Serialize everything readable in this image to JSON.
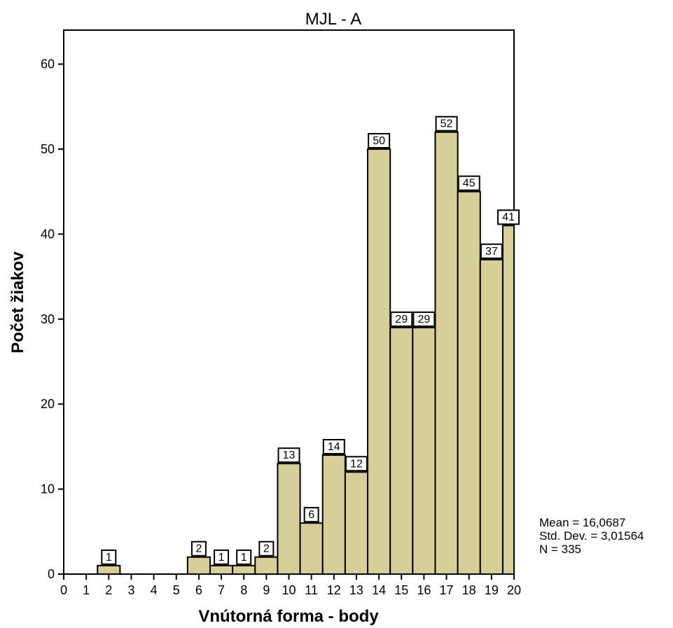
{
  "chart_data": {
    "type": "bar",
    "title": "MJL - A",
    "xlabel": "Vnútorná forma - body",
    "ylabel": "Počet žiakov",
    "x_ticks": [
      "0",
      "1",
      "2",
      "3",
      "4",
      "5",
      "6",
      "7",
      "8",
      "9",
      "10",
      "11",
      "12",
      "13",
      "14",
      "15",
      "16",
      "17",
      "18",
      "19",
      "20"
    ],
    "y_ticks": [
      "0",
      "10",
      "20",
      "30",
      "40",
      "50",
      "60"
    ],
    "xlim": [
      0,
      20
    ],
    "ylim": [
      0,
      64
    ],
    "bins": [
      {
        "from": 1.5,
        "to": 2.5,
        "value": 1,
        "label": "1"
      },
      {
        "from": 5.5,
        "to": 6.5,
        "value": 2,
        "label": "2"
      },
      {
        "from": 6.5,
        "to": 7.5,
        "value": 1,
        "label": "1"
      },
      {
        "from": 7.5,
        "to": 8.5,
        "value": 1,
        "label": "1"
      },
      {
        "from": 8.5,
        "to": 9.5,
        "value": 2,
        "label": "2"
      },
      {
        "from": 9.5,
        "to": 10.5,
        "value": 13,
        "label": "13"
      },
      {
        "from": 10.5,
        "to": 11.5,
        "value": 6,
        "label": "6"
      },
      {
        "from": 11.5,
        "to": 12.5,
        "value": 14,
        "label": "14"
      },
      {
        "from": 12.5,
        "to": 13.5,
        "value": 12,
        "label": "12"
      },
      {
        "from": 13.5,
        "to": 14.5,
        "value": 50,
        "label": "50"
      },
      {
        "from": 14.5,
        "to": 15.5,
        "value": 29,
        "label": "29"
      },
      {
        "from": 15.5,
        "to": 16.5,
        "value": 29,
        "label": "29"
      },
      {
        "from": 16.5,
        "to": 17.5,
        "value": 52,
        "label": "52"
      },
      {
        "from": 17.5,
        "to": 18.5,
        "value": 45,
        "label": "45"
      },
      {
        "from": 18.5,
        "to": 19.5,
        "value": 37,
        "label": "37"
      },
      {
        "from": 19.5,
        "to": 20,
        "value": 41,
        "label": "41"
      }
    ],
    "bar_color": "#d6cf98",
    "stats": {
      "mean": "Mean = 16,0687",
      "std": "Std. Dev. = 3,01564",
      "n": "N = 335"
    }
  }
}
